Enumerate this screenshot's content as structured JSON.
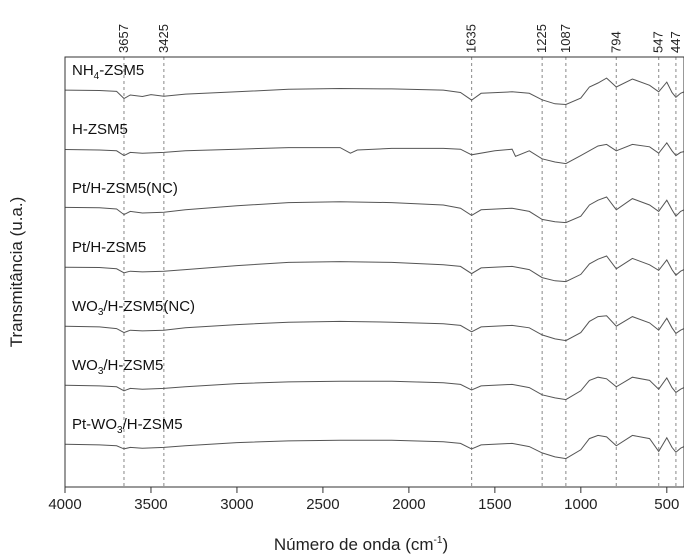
{
  "chart_data": {
    "type": "line",
    "xlabel_parts": [
      "Número de onda (cm",
      "-1",
      ")"
    ],
    "ylabel": "Transmitância (u.a.)",
    "xlim": [
      4000,
      400
    ],
    "x_reversed": true,
    "x_ticks": [
      4000,
      3500,
      3000,
      2500,
      2000,
      1500,
      1000,
      500
    ],
    "x_tick_labels": [
      "4000",
      "3500",
      "3000",
      "2500",
      "2000",
      "1500",
      "1000",
      "500"
    ],
    "y_ticks": false,
    "grid": false,
    "reference_lines": [
      3657,
      3425,
      1635,
      1225,
      1087,
      794,
      547,
      447
    ],
    "reference_line_labels": [
      "3657",
      "3425",
      "1635",
      "1225",
      "1087",
      "794",
      "547",
      "447"
    ],
    "series": [
      {
        "label_parts": [
          [
            "NH",
            ""
          ],
          [
            "4",
            "sub"
          ],
          [
            "-ZSM5",
            ""
          ]
        ],
        "x": [
          4000,
          3800,
          3700,
          3657,
          3620,
          3550,
          3500,
          3425,
          3300,
          3000,
          2700,
          2400,
          2100,
          1800,
          1700,
          1635,
          1580,
          1400,
          1300,
          1225,
          1150,
          1087,
          1000,
          950,
          900,
          850,
          794,
          700,
          600,
          547,
          500,
          470,
          447,
          420,
          400
        ],
        "y": [
          0.1,
          0.12,
          0.18,
          0.62,
          0.4,
          0.5,
          0.38,
          0.48,
          0.35,
          0.2,
          0.05,
          0.0,
          0.02,
          0.1,
          0.25,
          0.72,
          0.3,
          0.2,
          0.3,
          0.7,
          0.95,
          1.0,
          0.6,
          -0.1,
          -0.35,
          -0.65,
          -0.1,
          -0.6,
          -0.2,
          0.2,
          -0.4,
          0.25,
          0.55,
          0.3,
          0.2
        ]
      },
      {
        "label_parts": [
          [
            "H-ZSM5",
            ""
          ]
        ],
        "x": [
          4000,
          3800,
          3700,
          3657,
          3620,
          3550,
          3425,
          3300,
          3000,
          2700,
          2400,
          2340,
          2300,
          2100,
          1800,
          1700,
          1635,
          1500,
          1400,
          1380,
          1300,
          1225,
          1150,
          1087,
          1000,
          900,
          850,
          794,
          700,
          600,
          547,
          500,
          470,
          447,
          420,
          400
        ],
        "y": [
          0.12,
          0.15,
          0.2,
          0.5,
          0.3,
          0.35,
          0.3,
          0.2,
          0.1,
          0.0,
          0.0,
          0.35,
          0.15,
          0.05,
          0.05,
          0.1,
          0.45,
          0.2,
          0.1,
          0.55,
          0.2,
          0.7,
          0.9,
          1.0,
          0.5,
          -0.1,
          -0.2,
          0.2,
          -0.2,
          -0.05,
          0.35,
          -0.3,
          0.2,
          0.5,
          0.3,
          0.25
        ]
      },
      {
        "label_parts": [
          [
            "Pt/H-ZSM5(NC)",
            ""
          ]
        ],
        "x": [
          4000,
          3800,
          3700,
          3657,
          3620,
          3550,
          3425,
          3300,
          3000,
          2700,
          2400,
          2100,
          1800,
          1700,
          1635,
          1580,
          1400,
          1300,
          1225,
          1150,
          1087,
          1000,
          950,
          900,
          850,
          794,
          700,
          600,
          547,
          500,
          470,
          447,
          420,
          400
        ],
        "y": [
          0.05,
          0.08,
          0.15,
          0.5,
          0.3,
          0.4,
          0.35,
          0.2,
          -0.05,
          -0.25,
          -0.3,
          -0.25,
          -0.1,
          0.1,
          0.55,
          0.2,
          0.1,
          0.3,
          0.8,
          0.95,
          1.0,
          0.6,
          -0.1,
          -0.4,
          -0.6,
          0.2,
          -0.5,
          -0.1,
          0.3,
          -0.4,
          0.2,
          0.6,
          0.3,
          0.2
        ]
      },
      {
        "label_parts": [
          [
            "Pt/H-ZSM5",
            ""
          ]
        ],
        "x": [
          4000,
          3800,
          3700,
          3657,
          3620,
          3550,
          3425,
          3300,
          3000,
          2700,
          2400,
          2100,
          1800,
          1700,
          1635,
          1580,
          1400,
          1300,
          1225,
          1150,
          1087,
          1000,
          950,
          900,
          850,
          794,
          700,
          600,
          547,
          500,
          470,
          447,
          420,
          400
        ],
        "y": [
          0.1,
          0.12,
          0.2,
          0.45,
          0.35,
          0.4,
          0.35,
          0.25,
          0.0,
          -0.2,
          -0.25,
          -0.2,
          -0.05,
          0.05,
          0.5,
          0.15,
          0.05,
          0.25,
          0.75,
          0.95,
          1.0,
          0.55,
          -0.1,
          -0.4,
          -0.6,
          0.2,
          -0.45,
          -0.05,
          0.3,
          -0.35,
          0.25,
          0.6,
          0.35,
          0.25
        ]
      },
      {
        "label_parts": [
          [
            "WO",
            ""
          ],
          [
            "3",
            "sub"
          ],
          [
            "/H-ZSM5(NC)",
            ""
          ]
        ],
        "x": [
          4000,
          3800,
          3700,
          3657,
          3620,
          3550,
          3425,
          3300,
          3000,
          2700,
          2400,
          2100,
          1800,
          1700,
          1635,
          1580,
          1400,
          1300,
          1225,
          1150,
          1087,
          1000,
          950,
          900,
          850,
          794,
          700,
          600,
          547,
          500,
          470,
          447,
          420,
          400
        ],
        "y": [
          0.1,
          0.15,
          0.25,
          0.5,
          0.35,
          0.4,
          0.35,
          0.2,
          0.0,
          -0.15,
          -0.2,
          -0.15,
          -0.05,
          0.05,
          0.45,
          0.15,
          0.05,
          0.2,
          0.65,
          0.9,
          1.0,
          0.5,
          -0.2,
          -0.5,
          -0.55,
          0.1,
          -0.5,
          -0.1,
          0.35,
          -0.4,
          0.2,
          0.55,
          0.35,
          0.25
        ]
      },
      {
        "label_parts": [
          [
            "WO",
            ""
          ],
          [
            "3",
            "sub"
          ],
          [
            "/H-ZSM5",
            ""
          ]
        ],
        "x": [
          4000,
          3800,
          3700,
          3657,
          3620,
          3550,
          3425,
          3300,
          3000,
          2700,
          2400,
          2100,
          1800,
          1700,
          1635,
          1580,
          1400,
          1300,
          1225,
          1150,
          1087,
          1000,
          950,
          900,
          850,
          794,
          700,
          600,
          547,
          500,
          470,
          447,
          420,
          400
        ],
        "y": [
          0.1,
          0.15,
          0.2,
          0.45,
          0.3,
          0.35,
          0.3,
          0.2,
          0.0,
          -0.1,
          -0.15,
          -0.15,
          -0.05,
          0.05,
          0.4,
          0.15,
          0.05,
          0.25,
          0.7,
          0.9,
          1.0,
          0.45,
          -0.2,
          -0.4,
          -0.3,
          0.2,
          -0.4,
          -0.2,
          0.35,
          -0.35,
          0.25,
          0.55,
          0.35,
          0.25
        ]
      },
      {
        "label_parts": [
          [
            "Pt-WO",
            ""
          ],
          [
            "3",
            "sub"
          ],
          [
            "/H-ZSM5",
            ""
          ]
        ],
        "x": [
          4000,
          3800,
          3700,
          3657,
          3620,
          3550,
          3425,
          3300,
          3000,
          2700,
          2400,
          2100,
          1800,
          1700,
          1635,
          1580,
          1400,
          1300,
          1225,
          1150,
          1087,
          1000,
          950,
          900,
          850,
          794,
          700,
          600,
          547,
          500,
          470,
          447,
          420,
          400
        ],
        "y": [
          0.1,
          0.15,
          0.2,
          0.4,
          0.3,
          0.35,
          0.3,
          0.2,
          0.0,
          -0.1,
          -0.15,
          -0.15,
          -0.05,
          0.05,
          0.4,
          0.15,
          0.05,
          0.25,
          0.65,
          0.9,
          1.0,
          0.45,
          -0.25,
          -0.45,
          -0.35,
          0.2,
          -0.45,
          -0.25,
          0.55,
          -0.3,
          0.3,
          0.6,
          0.35,
          0.25
        ]
      }
    ]
  }
}
